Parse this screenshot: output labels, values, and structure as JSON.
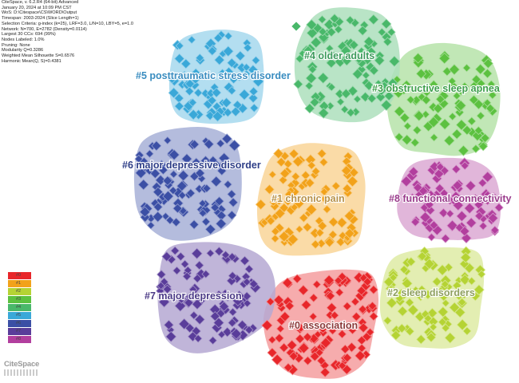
{
  "software_info": [
    "CiteSpace, v. 6.2.R4 (64-bit) Advanced",
    "January 20, 2024 at 10:09 PM CST",
    "WoS: D:\\Citespace\\CS\\WORD\\Output",
    "Timespan: 2003-2024 (Slice Length=1)",
    "Selection Criteria: g-index (k=25), LRF=3.0, L/N=10, LBY=5, e=1.0",
    "Network: N=700, E=2782 (Density=0.0114)",
    "Largest 30 CCs: 694 (99%)",
    "Nodes Labeled: 1.0%",
    "Pruning: None",
    "Modularity Q=0.3286",
    "Weighted Mean Silhouette S=0.6576",
    "Harmonic Mean(Q, S)=0.4381"
  ],
  "clusters": [
    {
      "id": 0,
      "label": "#0 association",
      "color": "#e8262a"
    },
    {
      "id": 1,
      "label": "#1 chronic pain",
      "color": "#f2a21a"
    },
    {
      "id": 2,
      "label": "#2 sleep disorders",
      "color": "#b5d334"
    },
    {
      "id": 3,
      "label": "#3 obstructive sleep apnea",
      "color": "#5cc140"
    },
    {
      "id": 4,
      "label": "#4 older adults",
      "color": "#49b86a"
    },
    {
      "id": 5,
      "label": "#5 posttraumatic stress disorder",
      "color": "#3aa8d8"
    },
    {
      "id": 6,
      "label": "#6 major depressive disorder",
      "color": "#3b4fa5"
    },
    {
      "id": 7,
      "label": "#7 major depression",
      "color": "#5a3d9a"
    },
    {
      "id": 8,
      "label": "#8 functional connectivity",
      "color": "#b23f9e"
    }
  ],
  "legend": {
    "items": [
      "#0",
      "#1",
      "#2",
      "#3",
      "#4",
      "#5",
      "#6",
      "#7",
      "#8"
    ],
    "colors": [
      "#e8262a",
      "#f2a21a",
      "#b5d334",
      "#5cc140",
      "#49b86a",
      "#3aa8d8",
      "#3b4fa5",
      "#5a3d9a",
      "#b23f9e"
    ]
  },
  "watermark": "CiteSpace"
}
